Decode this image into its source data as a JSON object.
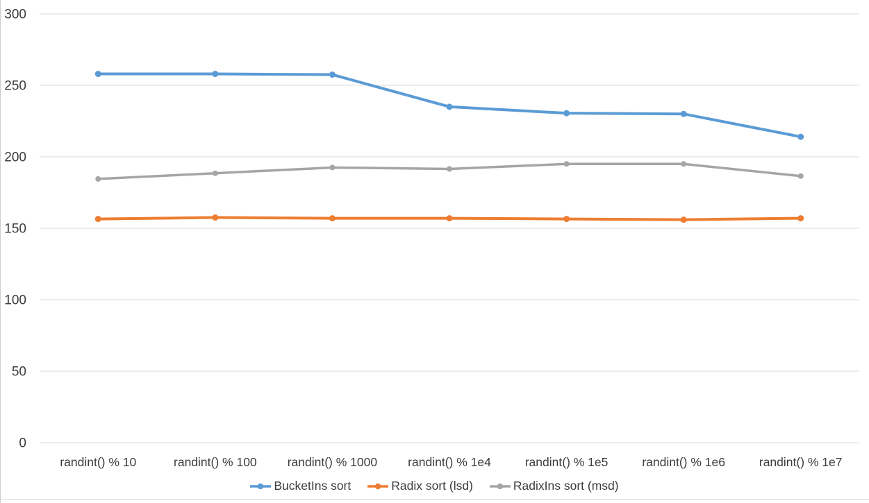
{
  "page": {
    "background": "#FFFFFF"
  },
  "chart_data": {
    "type": "line",
    "categories": [
      "randint() % 10",
      "randint() % 100",
      "randint() % 1000",
      "randint() % 1e4",
      "randint() % 1e5",
      "randint() % 1e6",
      "randint() % 1e7"
    ],
    "series": [
      {
        "name": "BucketIns sort",
        "color": "#5B9BD5",
        "values": [
          258,
          258,
          257.5,
          235,
          230.5,
          230,
          214
        ]
      },
      {
        "name": "Radix sort (lsd)",
        "color": "#ED7D31",
        "values": [
          156.5,
          157.5,
          157,
          157,
          156.5,
          156,
          157
        ]
      },
      {
        "name": "RadixIns sort (msd)",
        "color": "#A5A5A5",
        "values": [
          184.5,
          188.5,
          192.5,
          191.5,
          195,
          195,
          186.5
        ]
      }
    ],
    "yticks": [
      300,
      250,
      200,
      150,
      100,
      50,
      0
    ],
    "ylim": [
      0,
      300
    ],
    "grid": true,
    "gridline_color": "#D9D9D9",
    "axis_text_color": "#3C3C3C",
    "marker": "circle",
    "legend_position": "bottom"
  }
}
